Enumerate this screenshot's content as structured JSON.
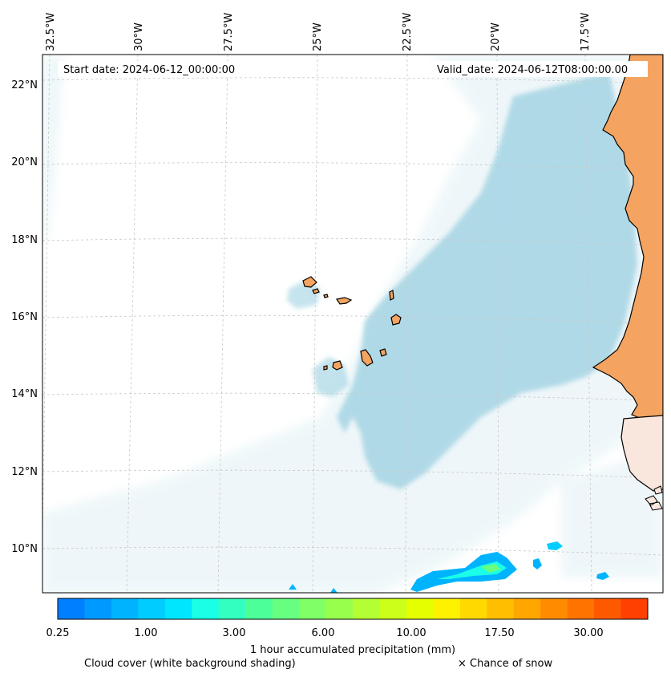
{
  "map": {
    "start_date": "Start date: 2024-06-12_00:00:00",
    "valid_date": "Valid_date: 2024-06-12T08:00:00.00",
    "lon_ticks": [
      "32.5°W",
      "30°W",
      "27.5°W",
      "25°W",
      "22.5°W",
      "20°W",
      "17.5°W"
    ],
    "lat_ticks": [
      "22°N",
      "20°N",
      "18°N",
      "16°N",
      "14°N",
      "12°N",
      "10°N"
    ],
    "colors": {
      "land": "#F4A460",
      "cloud": "#ADD8E6",
      "coast": "#000000",
      "grid": "#bbbbbb"
    }
  },
  "colorbar": {
    "tick_labels": [
      "0.25",
      "1.00",
      "3.00",
      "6.00",
      "10.00",
      "17.50",
      "30.00"
    ],
    "colors": [
      "#0080ff",
      "#0099ff",
      "#00b3ff",
      "#00ccff",
      "#00e6ff",
      "#1affe6",
      "#33ffc0",
      "#4dff99",
      "#66ff80",
      "#80ff66",
      "#99ff4d",
      "#b3ff33",
      "#ccff1a",
      "#e6ff00",
      "#fff200",
      "#ffd900",
      "#ffbf00",
      "#ffa600",
      "#ff8c00",
      "#ff7300",
      "#ff5900",
      "#ff4000"
    ],
    "title": "1 hour accumulated precipitation (mm)"
  },
  "legend": {
    "cloud_cover": "Cloud cover (white background shading)",
    "snow": "× Chance of snow"
  }
}
